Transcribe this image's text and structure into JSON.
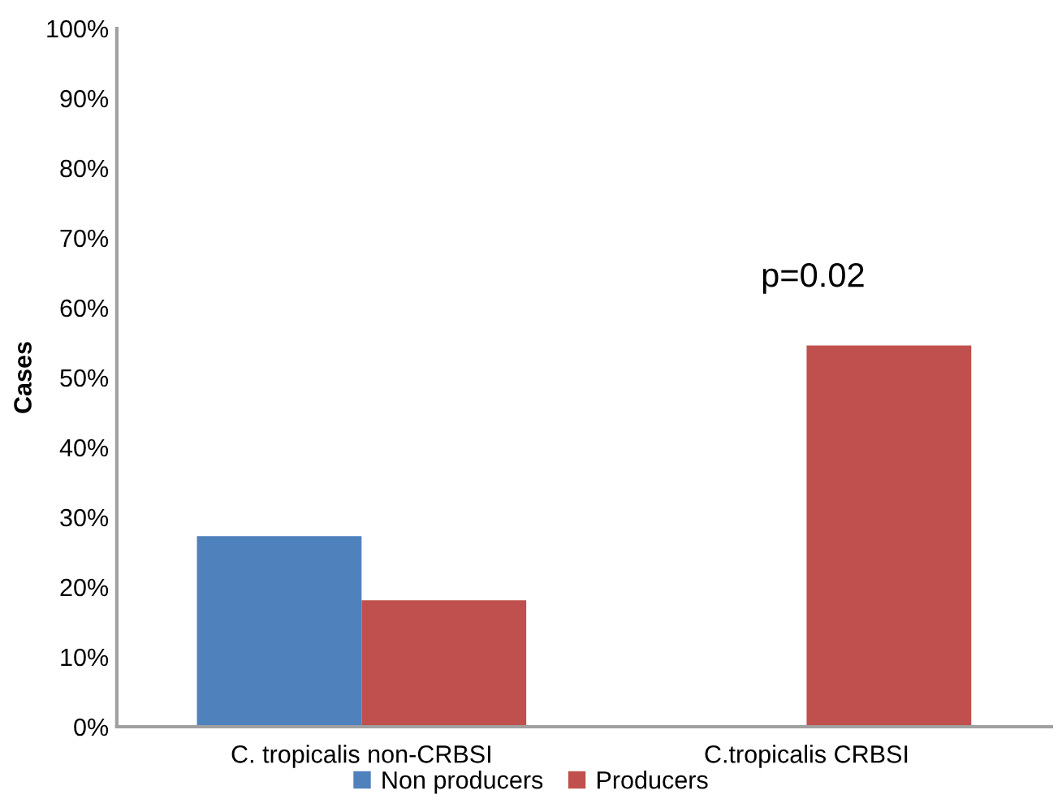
{
  "chart_data": {
    "type": "bar",
    "ylabel": "Cases",
    "categories": [
      "C. tropicalis non-CRBSI",
      "C.tropicalis CRBSI"
    ],
    "series": [
      {
        "name": "Non producers",
        "color": "#4f81bd",
        "values": [
          27.3,
          0
        ]
      },
      {
        "name": "Producers",
        "color": "#c0504d",
        "values": [
          18.1,
          54.6
        ]
      }
    ],
    "ylim": [
      0,
      100
    ],
    "yticks": [
      {
        "value": 0,
        "label": "0%"
      },
      {
        "value": 10,
        "label": "10%"
      },
      {
        "value": 20,
        "label": "20%"
      },
      {
        "value": 30,
        "label": "30%"
      },
      {
        "value": 40,
        "label": "40%"
      },
      {
        "value": 50,
        "label": "50%"
      },
      {
        "value": 60,
        "label": "60%"
      },
      {
        "value": 70,
        "label": "70%"
      },
      {
        "value": 80,
        "label": "80%"
      },
      {
        "value": 90,
        "label": "90%"
      },
      {
        "value": 100,
        "label": "100%"
      }
    ],
    "annotations": [
      "p=0.02"
    ],
    "grid": false,
    "legend": "bottom"
  }
}
